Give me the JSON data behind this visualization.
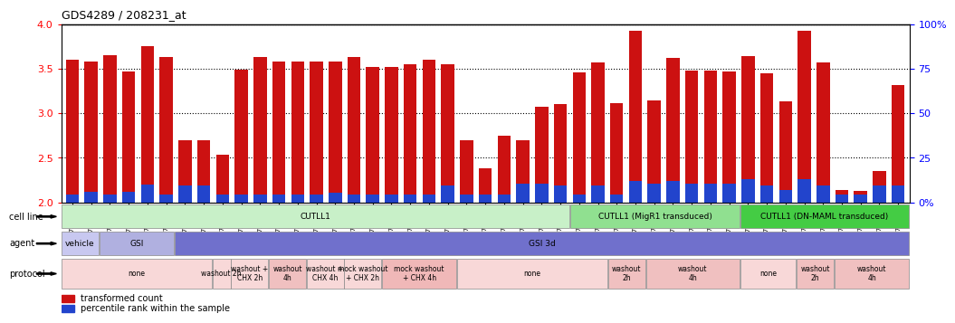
{
  "title": "GDS4289 / 208231_at",
  "gsm_labels": [
    "GSM731500",
    "GSM731501",
    "GSM731502",
    "GSM731503",
    "GSM731504",
    "GSM731505",
    "GSM731518",
    "GSM731519",
    "GSM731520",
    "GSM731506",
    "GSM731507",
    "GSM731508",
    "GSM731509",
    "GSM731510",
    "GSM731511",
    "GSM731512",
    "GSM731513",
    "GSM731514",
    "GSM731515",
    "GSM731516",
    "GSM731517",
    "GSM731521",
    "GSM731522",
    "GSM731523",
    "GSM731524",
    "GSM731525",
    "GSM731526",
    "GSM731527",
    "GSM731528",
    "GSM731529",
    "GSM731531",
    "GSM731532",
    "GSM731533",
    "GSM731534",
    "GSM731535",
    "GSM731536",
    "GSM731537",
    "GSM731538",
    "GSM731539",
    "GSM731540",
    "GSM731541",
    "GSM731542",
    "GSM731543",
    "GSM731544",
    "GSM731545"
  ],
  "red_values": [
    3.6,
    3.58,
    3.65,
    3.47,
    3.76,
    3.63,
    2.7,
    2.7,
    2.54,
    3.49,
    3.63,
    3.58,
    3.58,
    3.58,
    3.58,
    3.63,
    3.52,
    3.52,
    3.55,
    3.6,
    3.55,
    2.7,
    2.38,
    2.75,
    2.7,
    3.07,
    3.1,
    3.46,
    3.57,
    3.12,
    3.93,
    3.15,
    3.62,
    3.48,
    3.48,
    3.47,
    3.64,
    3.45,
    3.14,
    3.93,
    3.57,
    2.14,
    2.13,
    2.35,
    3.32
  ],
  "blue_values": [
    0.09,
    0.12,
    0.09,
    0.12,
    0.2,
    0.09,
    0.19,
    0.19,
    0.09,
    0.09,
    0.09,
    0.09,
    0.09,
    0.09,
    0.11,
    0.09,
    0.09,
    0.09,
    0.09,
    0.09,
    0.19,
    0.09,
    0.09,
    0.09,
    0.21,
    0.21,
    0.19,
    0.09,
    0.19,
    0.09,
    0.24,
    0.21,
    0.24,
    0.21,
    0.21,
    0.21,
    0.26,
    0.19,
    0.14,
    0.26,
    0.19,
    0.09,
    0.09,
    0.19,
    0.19
  ],
  "ylim": [
    2.0,
    4.0
  ],
  "yticks_left": [
    2.0,
    2.5,
    3.0,
    3.5,
    4.0
  ],
  "yticks_right": [
    0,
    25,
    50,
    75,
    100
  ],
  "ytick_right_labels": [
    "0%",
    "25",
    "50",
    "75",
    "100%"
  ],
  "bar_color": "#cc1111",
  "blue_color": "#2244cc",
  "cell_line_groups": [
    {
      "label": "CUTLL1",
      "start": 0,
      "end": 27,
      "color": "#c8f0c8"
    },
    {
      "label": "CUTLL1 (MigR1 transduced)",
      "start": 27,
      "end": 36,
      "color": "#90e090"
    },
    {
      "label": "CUTLL1 (DN-MAML transduced)",
      "start": 36,
      "end": 45,
      "color": "#44cc44"
    }
  ],
  "agent_groups": [
    {
      "label": "vehicle",
      "start": 0,
      "end": 2,
      "color": "#c8c8f0"
    },
    {
      "label": "GSI",
      "start": 2,
      "end": 6,
      "color": "#b0b0e0"
    },
    {
      "label": "GSI 3d",
      "start": 6,
      "end": 45,
      "color": "#7070cc"
    }
  ],
  "protocol_groups": [
    {
      "label": "none",
      "start": 0,
      "end": 8,
      "color": "#f8d8d8"
    },
    {
      "label": "washout 2h",
      "start": 8,
      "end": 9,
      "color": "#f8d8d8"
    },
    {
      "label": "washout +\nCHX 2h",
      "start": 9,
      "end": 11,
      "color": "#f8d8d8"
    },
    {
      "label": "washout\n4h",
      "start": 11,
      "end": 13,
      "color": "#f0c0c0"
    },
    {
      "label": "washout +\nCHX 4h",
      "start": 13,
      "end": 15,
      "color": "#f8d8d8"
    },
    {
      "label": "mock washout\n+ CHX 2h",
      "start": 15,
      "end": 17,
      "color": "#f8d8d8"
    },
    {
      "label": "mock washout\n+ CHX 4h",
      "start": 17,
      "end": 21,
      "color": "#f0b8b8"
    },
    {
      "label": "none",
      "start": 21,
      "end": 29,
      "color": "#f8d8d8"
    },
    {
      "label": "washout\n2h",
      "start": 29,
      "end": 31,
      "color": "#f0c0c0"
    },
    {
      "label": "washout\n4h",
      "start": 31,
      "end": 36,
      "color": "#f0c0c0"
    },
    {
      "label": "none",
      "start": 36,
      "end": 39,
      "color": "#f8d8d8"
    },
    {
      "label": "washout\n2h",
      "start": 39,
      "end": 41,
      "color": "#f0c0c0"
    },
    {
      "label": "washout\n4h",
      "start": 41,
      "end": 45,
      "color": "#f0c0c0"
    }
  ],
  "legend_items": [
    {
      "label": "transformed count",
      "color": "#cc1111"
    },
    {
      "label": "percentile rank within the sample",
      "color": "#2244cc"
    }
  ],
  "row_labels": [
    "cell line",
    "agent",
    "protocol"
  ]
}
